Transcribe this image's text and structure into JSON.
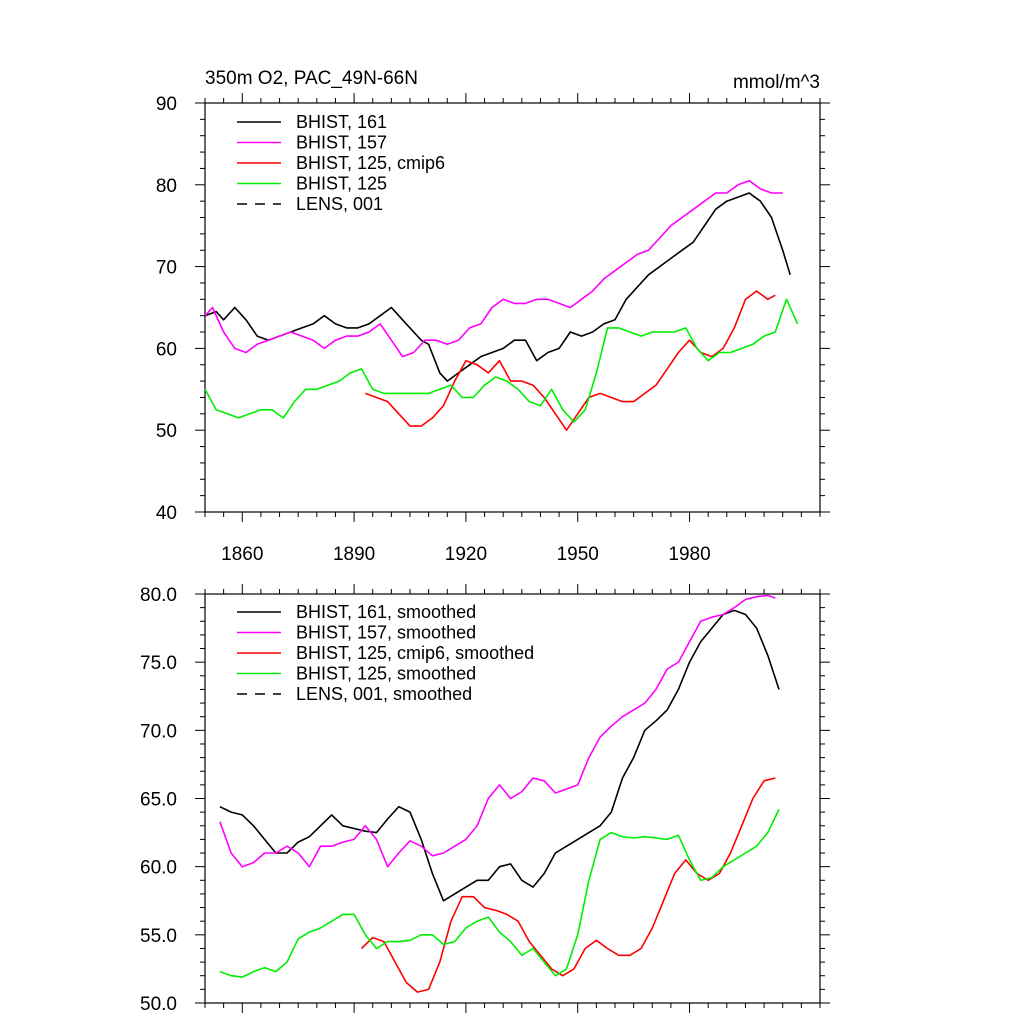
{
  "chart_data": [
    {
      "type": "line",
      "title": "350m O2, PAC_49N-66N",
      "units": "mmol/m^3",
      "xlabel": "",
      "ylabel": "",
      "xlim": [
        1850,
        2015
      ],
      "ylim": [
        40,
        90
      ],
      "xticks": [
        1860,
        1890,
        1920,
        1950,
        1980
      ],
      "xtick_labels": [
        "1860",
        "1890",
        "1920",
        "1950",
        "1980"
      ],
      "yticks": [
        40,
        50,
        60,
        70,
        80,
        90
      ],
      "ytick_labels": [
        "40",
        "50",
        "60",
        "70",
        "80",
        "90"
      ],
      "legend_position": "top-left",
      "series": [
        {
          "name": "BHIST, 161",
          "color": "#000000",
          "dash": "solid",
          "x": [
            1850,
            1853,
            1855,
            1858,
            1861,
            1864,
            1867,
            1870,
            1873,
            1876,
            1879,
            1882,
            1885,
            1888,
            1891,
            1894,
            1897,
            1900,
            1903,
            1906,
            1908,
            1910,
            1913,
            1915,
            1918,
            1921,
            1924,
            1927,
            1930,
            1933,
            1936,
            1939,
            1942,
            1945,
            1948,
            1951,
            1954,
            1957,
            1960,
            1963,
            1966,
            1969,
            1972,
            1975,
            1978,
            1981,
            1984,
            1987,
            1990,
            1993,
            1996,
            1999,
            2002,
            2005,
            2007
          ],
          "values": [
            64,
            64.5,
            63.5,
            65,
            63.5,
            61.5,
            61,
            61.5,
            62,
            62.5,
            63,
            64,
            63,
            62.5,
            62.5,
            63,
            64,
            65,
            63.5,
            62,
            61,
            60.5,
            57,
            56,
            57,
            58,
            59,
            59.5,
            60,
            61,
            61,
            58.5,
            59.5,
            60,
            62,
            61.5,
            62,
            63,
            63.5,
            66,
            67.5,
            69,
            70,
            71,
            72,
            73,
            75,
            77,
            78,
            78.5,
            79,
            78,
            76,
            72,
            69
          ]
        },
        {
          "name": "BHIST, 157",
          "color": "#ff00ff",
          "dash": "solid",
          "x": [
            1850,
            1852,
            1855,
            1858,
            1861,
            1864,
            1867,
            1870,
            1873,
            1876,
            1879,
            1882,
            1885,
            1888,
            1891,
            1894,
            1897,
            1900,
            1903,
            1906,
            1909,
            1912,
            1915,
            1918,
            1921,
            1924,
            1927,
            1930,
            1933,
            1936,
            1939,
            1942,
            1945,
            1948,
            1951,
            1954,
            1957,
            1960,
            1963,
            1966,
            1969,
            1972,
            1975,
            1978,
            1981,
            1984,
            1987,
            1990,
            1993,
            1996,
            1999,
            2002,
            2005
          ],
          "values": [
            64,
            65,
            62,
            60,
            59.5,
            60.5,
            61,
            61.5,
            62,
            61.5,
            61,
            60,
            61,
            61.5,
            61.5,
            62,
            63,
            61,
            59,
            59.5,
            61,
            61,
            60.5,
            61,
            62.5,
            63,
            65,
            66,
            65.5,
            65.5,
            66,
            66,
            65.5,
            65,
            66,
            67,
            68.5,
            69.5,
            70.5,
            71.5,
            72,
            73.5,
            75,
            76,
            77,
            78,
            79,
            79,
            80,
            80.5,
            79.5,
            79,
            79
          ]
        },
        {
          "name": "BHIST, 125, cmip6",
          "color": "#ff0000",
          "dash": "solid",
          "x": [
            1893,
            1896,
            1899,
            1902,
            1905,
            1908,
            1911,
            1914,
            1917,
            1920,
            1923,
            1926,
            1929,
            1932,
            1935,
            1938,
            1941,
            1944,
            1947,
            1950,
            1953,
            1956,
            1959,
            1962,
            1965,
            1968,
            1971,
            1974,
            1977,
            1980,
            1983,
            1986,
            1989,
            1992,
            1995,
            1998,
            2001,
            2003
          ],
          "values": [
            54.5,
            54,
            53.5,
            52,
            50.5,
            50.5,
            51.5,
            53,
            56,
            58.5,
            58,
            57,
            58.5,
            56,
            56,
            55.5,
            54,
            52,
            50,
            52,
            54,
            54.5,
            54,
            53.5,
            53.5,
            54.5,
            55.5,
            57.5,
            59.5,
            61,
            59.5,
            59,
            60,
            62.5,
            66,
            67,
            66,
            66.5
          ]
        },
        {
          "name": "BHIST, 125",
          "color": "#00ee00",
          "dash": "solid",
          "x": [
            1850,
            1853,
            1856,
            1859,
            1862,
            1865,
            1868,
            1871,
            1874,
            1877,
            1880,
            1883,
            1886,
            1889,
            1892,
            1895,
            1898,
            1901,
            1904,
            1907,
            1910,
            1913,
            1916,
            1919,
            1922,
            1925,
            1928,
            1931,
            1934,
            1937,
            1940,
            1943,
            1946,
            1949,
            1952,
            1955,
            1958,
            1961,
            1964,
            1967,
            1970,
            1973,
            1976,
            1979,
            1982,
            1985,
            1988,
            1991,
            1994,
            1997,
            2000,
            2003,
            2006,
            2009
          ],
          "values": [
            55,
            52.5,
            52,
            51.5,
            52,
            52.5,
            52.5,
            51.5,
            53.5,
            55,
            55,
            55.5,
            56,
            57,
            57.5,
            55,
            54.5,
            54.5,
            54.5,
            54.5,
            54.5,
            55,
            55.5,
            54,
            54,
            55.5,
            56.5,
            56,
            55,
            53.5,
            53,
            55,
            52.5,
            51,
            52.5,
            57,
            62.5,
            62.5,
            62,
            61.5,
            62,
            62,
            62,
            62.5,
            60,
            58.5,
            59.5,
            59.5,
            60,
            60.5,
            61.5,
            62,
            66,
            63
          ]
        },
        {
          "name": "LENS, 001",
          "color": "#000000",
          "dash": "dashed",
          "x": [],
          "values": []
        }
      ]
    },
    {
      "type": "line",
      "title": "",
      "xlabel": "",
      "ylabel": "",
      "xlim": [
        1850,
        2015
      ],
      "ylim": [
        50,
        80
      ],
      "xticks": [
        1860,
        1890,
        1920,
        1950,
        1980
      ],
      "yticks": [
        50,
        55,
        60,
        65,
        70,
        75,
        80
      ],
      "ytick_labels": [
        "50.0",
        "55.0",
        "60.0",
        "65.0",
        "70.0",
        "75.0",
        "80.0"
      ],
      "legend_position": "top-left",
      "series": [
        {
          "name": "BHIST, 161, smoothed",
          "color": "#000000",
          "dash": "solid",
          "x": [
            1854,
            1857,
            1860,
            1863,
            1866,
            1869,
            1872,
            1875,
            1878,
            1881,
            1884,
            1887,
            1890,
            1893,
            1896,
            1899,
            1902,
            1905,
            1908,
            1911,
            1914,
            1917,
            1920,
            1923,
            1926,
            1929,
            1932,
            1935,
            1938,
            1941,
            1944,
            1947,
            1950,
            1953,
            1956,
            1959,
            1962,
            1965,
            1968,
            1971,
            1974,
            1977,
            1980,
            1983,
            1986,
            1989,
            1992,
            1995,
            1998,
            2001,
            2004
          ],
          "values": [
            64.4,
            64,
            63.8,
            63,
            62,
            61,
            61,
            61.8,
            62.2,
            63,
            63.8,
            63,
            62.8,
            62.6,
            62.5,
            63.5,
            64.4,
            64,
            62,
            59.5,
            57.5,
            58,
            58.5,
            59,
            59,
            60,
            60.2,
            59,
            58.5,
            59.5,
            61,
            61.5,
            62,
            62.5,
            63,
            64,
            66.5,
            68,
            70,
            70.7,
            71.5,
            73,
            75,
            76.5,
            77.5,
            78.5,
            78.8,
            78.5,
            77.5,
            75.5,
            73
          ]
        },
        {
          "name": "BHIST, 157, smoothed",
          "color": "#ff00ff",
          "dash": "solid",
          "x": [
            1854,
            1857,
            1860,
            1863,
            1866,
            1869,
            1872,
            1875,
            1878,
            1881,
            1884,
            1887,
            1890,
            1893,
            1896,
            1899,
            1902,
            1905,
            1908,
            1911,
            1914,
            1917,
            1920,
            1923,
            1926,
            1929,
            1932,
            1935,
            1938,
            1941,
            1944,
            1947,
            1950,
            1953,
            1956,
            1959,
            1962,
            1965,
            1968,
            1971,
            1974,
            1977,
            1980,
            1983,
            1986,
            1989,
            1992,
            1995,
            1998,
            2001,
            2003
          ],
          "values": [
            63.3,
            61,
            60,
            60.3,
            61,
            61,
            61.5,
            61,
            60,
            61.5,
            61.5,
            61.8,
            62,
            63,
            62,
            60,
            61,
            61.9,
            61.5,
            60.8,
            61,
            61.5,
            62,
            63,
            65,
            66,
            65,
            65.5,
            66.5,
            66.3,
            65.4,
            65.7,
            66,
            68,
            69.5,
            70.3,
            71,
            71.5,
            72,
            73,
            74.5,
            75,
            76.5,
            78,
            78.3,
            78.5,
            79,
            79.6,
            79.8,
            79.9,
            79.7
          ]
        },
        {
          "name": "BHIST, 125, cmip6, smoothed",
          "color": "#ff0000",
          "dash": "solid",
          "x": [
            1892,
            1895,
            1898,
            1901,
            1904,
            1907,
            1910,
            1913,
            1916,
            1919,
            1922,
            1925,
            1928,
            1931,
            1934,
            1937,
            1940,
            1943,
            1946,
            1949,
            1952,
            1955,
            1958,
            1961,
            1964,
            1967,
            1970,
            1973,
            1976,
            1979,
            1982,
            1985,
            1988,
            1991,
            1994,
            1997,
            2000,
            2003
          ],
          "values": [
            54,
            54.8,
            54.5,
            53,
            51.5,
            50.8,
            51,
            53,
            56,
            57.8,
            57.8,
            57,
            56.8,
            56.5,
            56,
            54.5,
            53.5,
            52.5,
            52,
            52.5,
            54,
            54.6,
            54,
            53.5,
            53.5,
            54,
            55.5,
            57.5,
            59.5,
            60.5,
            59.5,
            59,
            59.5,
            61,
            63,
            65,
            66.3,
            66.5
          ]
        },
        {
          "name": "BHIST, 125, smoothed",
          "color": "#00ee00",
          "dash": "solid",
          "x": [
            1854,
            1857,
            1860,
            1863,
            1866,
            1869,
            1872,
            1875,
            1878,
            1881,
            1884,
            1887,
            1890,
            1893,
            1896,
            1899,
            1902,
            1905,
            1908,
            1911,
            1914,
            1917,
            1920,
            1923,
            1926,
            1929,
            1932,
            1935,
            1938,
            1941,
            1944,
            1947,
            1950,
            1953,
            1956,
            1959,
            1962,
            1965,
            1968,
            1971,
            1974,
            1977,
            1980,
            1983,
            1986,
            1989,
            1992,
            1995,
            1998,
            2001,
            2004
          ],
          "values": [
            52.3,
            52,
            51.9,
            52.3,
            52.6,
            52.3,
            53,
            54.7,
            55.2,
            55.5,
            56,
            56.5,
            56.5,
            55,
            54,
            54.5,
            54.5,
            54.6,
            55,
            55,
            54.3,
            54.5,
            55.5,
            56,
            56.3,
            55.2,
            54.5,
            53.5,
            54,
            53,
            52,
            52.5,
            55,
            59,
            62,
            62.5,
            62.2,
            62.1,
            62.2,
            62.1,
            62,
            62.3,
            60.5,
            59,
            59.2,
            60,
            60.5,
            61,
            61.5,
            62.5,
            64.2
          ]
        },
        {
          "name": "LENS, 001, smoothed",
          "color": "#000000",
          "dash": "dashed",
          "x": [],
          "values": []
        }
      ]
    }
  ]
}
